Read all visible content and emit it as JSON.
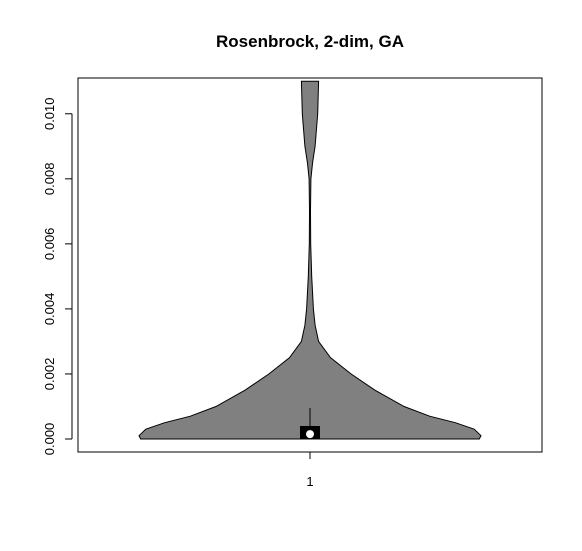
{
  "chart_data": {
    "type": "violin",
    "title": "Rosenbrock, 2-dim, GA",
    "xlabel": "",
    "ylabel": "",
    "categories": [
      "1"
    ],
    "ylim": [
      -0.0004,
      0.0111
    ],
    "yticks": [
      {
        "value": 0.0,
        "label": "0.000"
      },
      {
        "value": 0.002,
        "label": "0.002"
      },
      {
        "value": 0.004,
        "label": "0.004"
      },
      {
        "value": 0.006,
        "label": "0.006"
      },
      {
        "value": 0.008,
        "label": "0.008"
      },
      {
        "value": 0.01,
        "label": "0.010"
      }
    ],
    "grid": false,
    "box": {
      "q1": 0.0,
      "median": 0.00015,
      "q3": 0.0004,
      "whisker_low": 0.0,
      "whisker_high": 0.00095
    },
    "density_profile": [
      {
        "y": 0.0,
        "width": 0.99
      },
      {
        "y": 0.0001,
        "width": 1.0
      },
      {
        "y": 0.0003,
        "width": 0.96
      },
      {
        "y": 0.0005,
        "width": 0.85
      },
      {
        "y": 0.0007,
        "width": 0.7
      },
      {
        "y": 0.001,
        "width": 0.55
      },
      {
        "y": 0.0015,
        "width": 0.38
      },
      {
        "y": 0.002,
        "width": 0.24
      },
      {
        "y": 0.0025,
        "width": 0.12
      },
      {
        "y": 0.003,
        "width": 0.05
      },
      {
        "y": 0.0035,
        "width": 0.03
      },
      {
        "y": 0.004,
        "width": 0.02
      },
      {
        "y": 0.005,
        "width": 0.01
      },
      {
        "y": 0.006,
        "width": 0.004
      },
      {
        "y": 0.007,
        "width": 0.003
      },
      {
        "y": 0.008,
        "width": 0.005
      },
      {
        "y": 0.0085,
        "width": 0.015
      },
      {
        "y": 0.009,
        "width": 0.03
      },
      {
        "y": 0.01,
        "width": 0.045
      },
      {
        "y": 0.011,
        "width": 0.05
      }
    ],
    "colors": {
      "violin": "#808080",
      "box": "#000000",
      "median": "#ffffff"
    }
  }
}
